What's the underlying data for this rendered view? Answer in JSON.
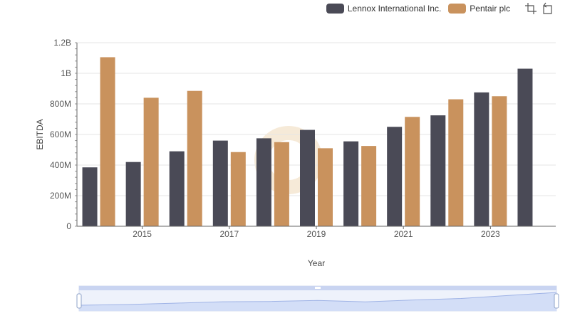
{
  "legend": {
    "items": [
      {
        "name": "Lennox International Inc.",
        "color": "#4a4a56"
      },
      {
        "name": "Pentair plc",
        "color": "#c9925d"
      }
    ]
  },
  "toolbox": {
    "icons": [
      "zoom-icon",
      "restore-icon"
    ]
  },
  "chart_data": {
    "type": "bar",
    "x": [
      2014,
      2015,
      2016,
      2017,
      2018,
      2019,
      2020,
      2021,
      2022,
      2023,
      2024
    ],
    "xticks": [
      "2015",
      "2017",
      "2019",
      "2021",
      "2023"
    ],
    "xlabel": "Year",
    "ylabel": "EBITDA",
    "ylim": [
      0,
      1200000000
    ],
    "yticks": [
      {
        "value": 0,
        "label": "0"
      },
      {
        "value": 200000000,
        "label": "200M"
      },
      {
        "value": 400000000,
        "label": "400M"
      },
      {
        "value": 600000000,
        "label": "600M"
      },
      {
        "value": 800000000,
        "label": "800M"
      },
      {
        "value": 1000000000,
        "label": "1B"
      },
      {
        "value": 1200000000,
        "label": "1.2B"
      }
    ],
    "series": [
      {
        "name": "Lennox International Inc.",
        "color": "#4a4a56",
        "values": [
          385000000,
          420000000,
          490000000,
          560000000,
          575000000,
          630000000,
          555000000,
          650000000,
          725000000,
          875000000,
          1030000000
        ]
      },
      {
        "name": "Pentair plc",
        "color": "#c9925d",
        "values": [
          1105000000,
          840000000,
          885000000,
          485000000,
          550000000,
          510000000,
          525000000,
          715000000,
          830000000,
          850000000,
          null
        ]
      }
    ],
    "grid": true,
    "legend_position": "top-right",
    "data_zoom": {
      "start": 0,
      "end": 100
    }
  }
}
